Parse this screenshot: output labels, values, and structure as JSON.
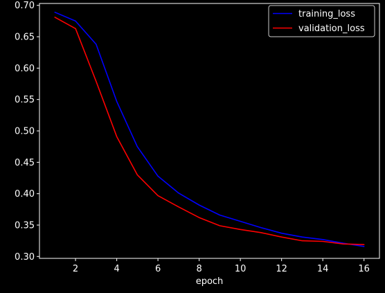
{
  "chart_data": {
    "type": "line",
    "xlabel": "epoch",
    "ylabel": "",
    "xlim": [
      0.25,
      16.75
    ],
    "ylim": [
      0.297,
      0.703
    ],
    "xticks": [
      2,
      4,
      6,
      8,
      10,
      12,
      14,
      16
    ],
    "yticks": [
      0.3,
      0.35,
      0.4,
      0.45,
      0.5,
      0.55,
      0.6,
      0.65,
      0.7
    ],
    "grid": false,
    "legend_position": "upper right",
    "x": [
      1,
      2,
      3,
      4,
      5,
      6,
      7,
      8,
      9,
      10,
      11,
      12,
      13,
      14,
      15,
      16
    ],
    "series": [
      {
        "name": "training_loss",
        "color": "#0000ff",
        "values": [
          0.689,
          0.675,
          0.638,
          0.547,
          0.475,
          0.428,
          0.401,
          0.382,
          0.366,
          0.356,
          0.346,
          0.337,
          0.331,
          0.327,
          0.321,
          0.316
        ]
      },
      {
        "name": "validation_loss",
        "color": "#ff0000",
        "values": [
          0.681,
          0.663,
          0.579,
          0.491,
          0.43,
          0.397,
          0.379,
          0.362,
          0.349,
          0.343,
          0.338,
          0.331,
          0.325,
          0.324,
          0.32,
          0.319
        ]
      }
    ]
  },
  "colors": {
    "background": "#000000",
    "axes": "#ffffff",
    "text": "#ffffff"
  }
}
